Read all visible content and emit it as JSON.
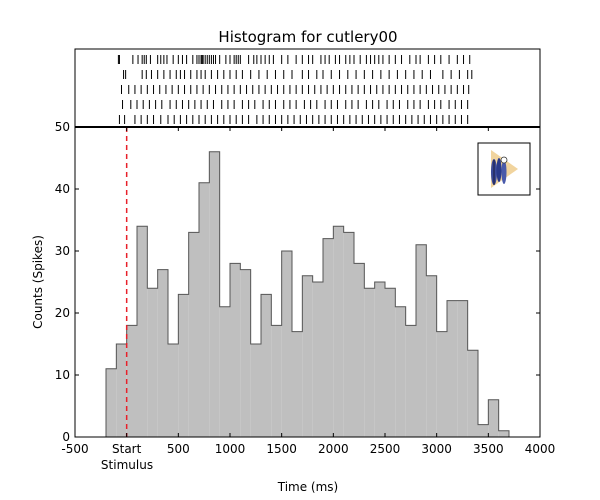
{
  "chart_data": {
    "type": "bar",
    "title": "Histogram for cutlery00",
    "xlabel": "Time (ms)",
    "ylabel": "Counts (Spikes)",
    "xlim": [
      -500,
      4000
    ],
    "ylim": [
      0,
      50
    ],
    "xticks": [
      -500,
      0,
      500,
      1000,
      1500,
      2000,
      2500,
      3000,
      3500,
      4000
    ],
    "xtick_labels": [
      "-500",
      "Start",
      "500",
      "1000",
      "1500",
      "2000",
      "2500",
      "3000",
      "3500",
      "4000"
    ],
    "yticks": [
      0,
      10,
      20,
      30,
      40,
      50
    ],
    "ytick_labels": [
      "0",
      "10",
      "20",
      "30",
      "40",
      "50"
    ],
    "stimulus_label": "Stimulus",
    "stimulus_marker_x": 0,
    "stimulus_marker_color": "#e8202a",
    "bar_fill_color": "#bfbfbf",
    "bar_edge_color": "#555555",
    "bin_width": 100,
    "bin_edges_start": -200,
    "values": [
      11,
      15,
      18,
      34,
      24,
      27,
      15,
      23,
      33,
      41,
      46,
      21,
      28,
      27,
      15,
      23,
      18,
      30,
      17,
      26,
      25,
      32,
      34,
      33,
      28,
      24,
      25,
      24,
      21,
      18,
      31,
      26,
      17,
      22,
      22,
      14,
      2,
      6,
      1
    ],
    "raster_rows": [
      [
        -80,
        -70,
        60,
        110,
        150,
        170,
        190,
        230,
        300,
        330,
        360,
        390,
        450,
        500,
        540,
        580,
        640,
        680,
        700,
        720,
        730,
        740,
        760,
        780,
        800,
        820,
        840,
        860,
        900,
        960,
        1000,
        1040,
        1060,
        1080,
        1100,
        1180,
        1230,
        1260,
        1300,
        1340,
        1380,
        1420,
        1500,
        1560,
        1640,
        1700,
        1760,
        1800,
        1880,
        1920,
        1960,
        2020,
        2060,
        2120,
        2160,
        2200,
        2260,
        2320,
        2360,
        2400,
        2440,
        2480,
        2540,
        2600,
        2660,
        2740,
        2800,
        2840,
        2920,
        2980,
        3040,
        3120,
        3200,
        3260,
        3320
      ],
      [
        -30,
        -10,
        150,
        190,
        240,
        300,
        360,
        420,
        480,
        520,
        560,
        620,
        680,
        720,
        760,
        820,
        880,
        940,
        1000,
        1060,
        1120,
        1200,
        1280,
        1360,
        1440,
        1520,
        1600,
        1700,
        1760,
        1840,
        1900,
        1980,
        2060,
        2140,
        2220,
        2300,
        2380,
        2460,
        2540,
        2620,
        2700,
        2780,
        2860,
        2940,
        3060,
        3140,
        3220,
        3300,
        3340
      ],
      [
        -50,
        20,
        80,
        140,
        200,
        260,
        320,
        380,
        440,
        500,
        560,
        620,
        680,
        740,
        800,
        860,
        920,
        980,
        1040,
        1100,
        1160,
        1220,
        1280,
        1340,
        1400,
        1460,
        1520,
        1580,
        1640,
        1700,
        1760,
        1820,
        1880,
        1940,
        2000,
        2060,
        2120,
        2180,
        2240,
        2300,
        2360,
        2420,
        2480,
        2540,
        2600,
        2660,
        2720,
        2780,
        2840,
        2900,
        2960,
        3020,
        3080,
        3140,
        3200,
        3260,
        3310
      ],
      [
        -40,
        40,
        100,
        160,
        220,
        280,
        340,
        420,
        480,
        540,
        600,
        660,
        720,
        780,
        840,
        920,
        980,
        1040,
        1120,
        1180,
        1240,
        1320,
        1380,
        1440,
        1520,
        1580,
        1640,
        1720,
        1780,
        1840,
        1920,
        1980,
        2040,
        2120,
        2180,
        2240,
        2320,
        2380,
        2440,
        2520,
        2580,
        2640,
        2720,
        2780,
        2840,
        2920,
        2980,
        3040,
        3120,
        3180,
        3240,
        3300
      ],
      [
        -70,
        -20,
        80,
        140,
        200,
        260,
        330,
        400,
        460,
        520,
        580,
        640,
        700,
        760,
        820,
        880,
        940,
        1000,
        1060,
        1120,
        1180,
        1260,
        1320,
        1380,
        1440,
        1500,
        1560,
        1620,
        1680,
        1740,
        1800,
        1860,
        1920,
        1980,
        2040,
        2100,
        2160,
        2220,
        2280,
        2340,
        2400,
        2460,
        2520,
        2580,
        2640,
        2700,
        2760,
        2820,
        2880,
        2940,
        3000,
        3060,
        3120,
        3180,
        3240,
        3300
      ]
    ],
    "inset_icon": "cutlery-thumbnail-icon",
    "grid": false
  }
}
